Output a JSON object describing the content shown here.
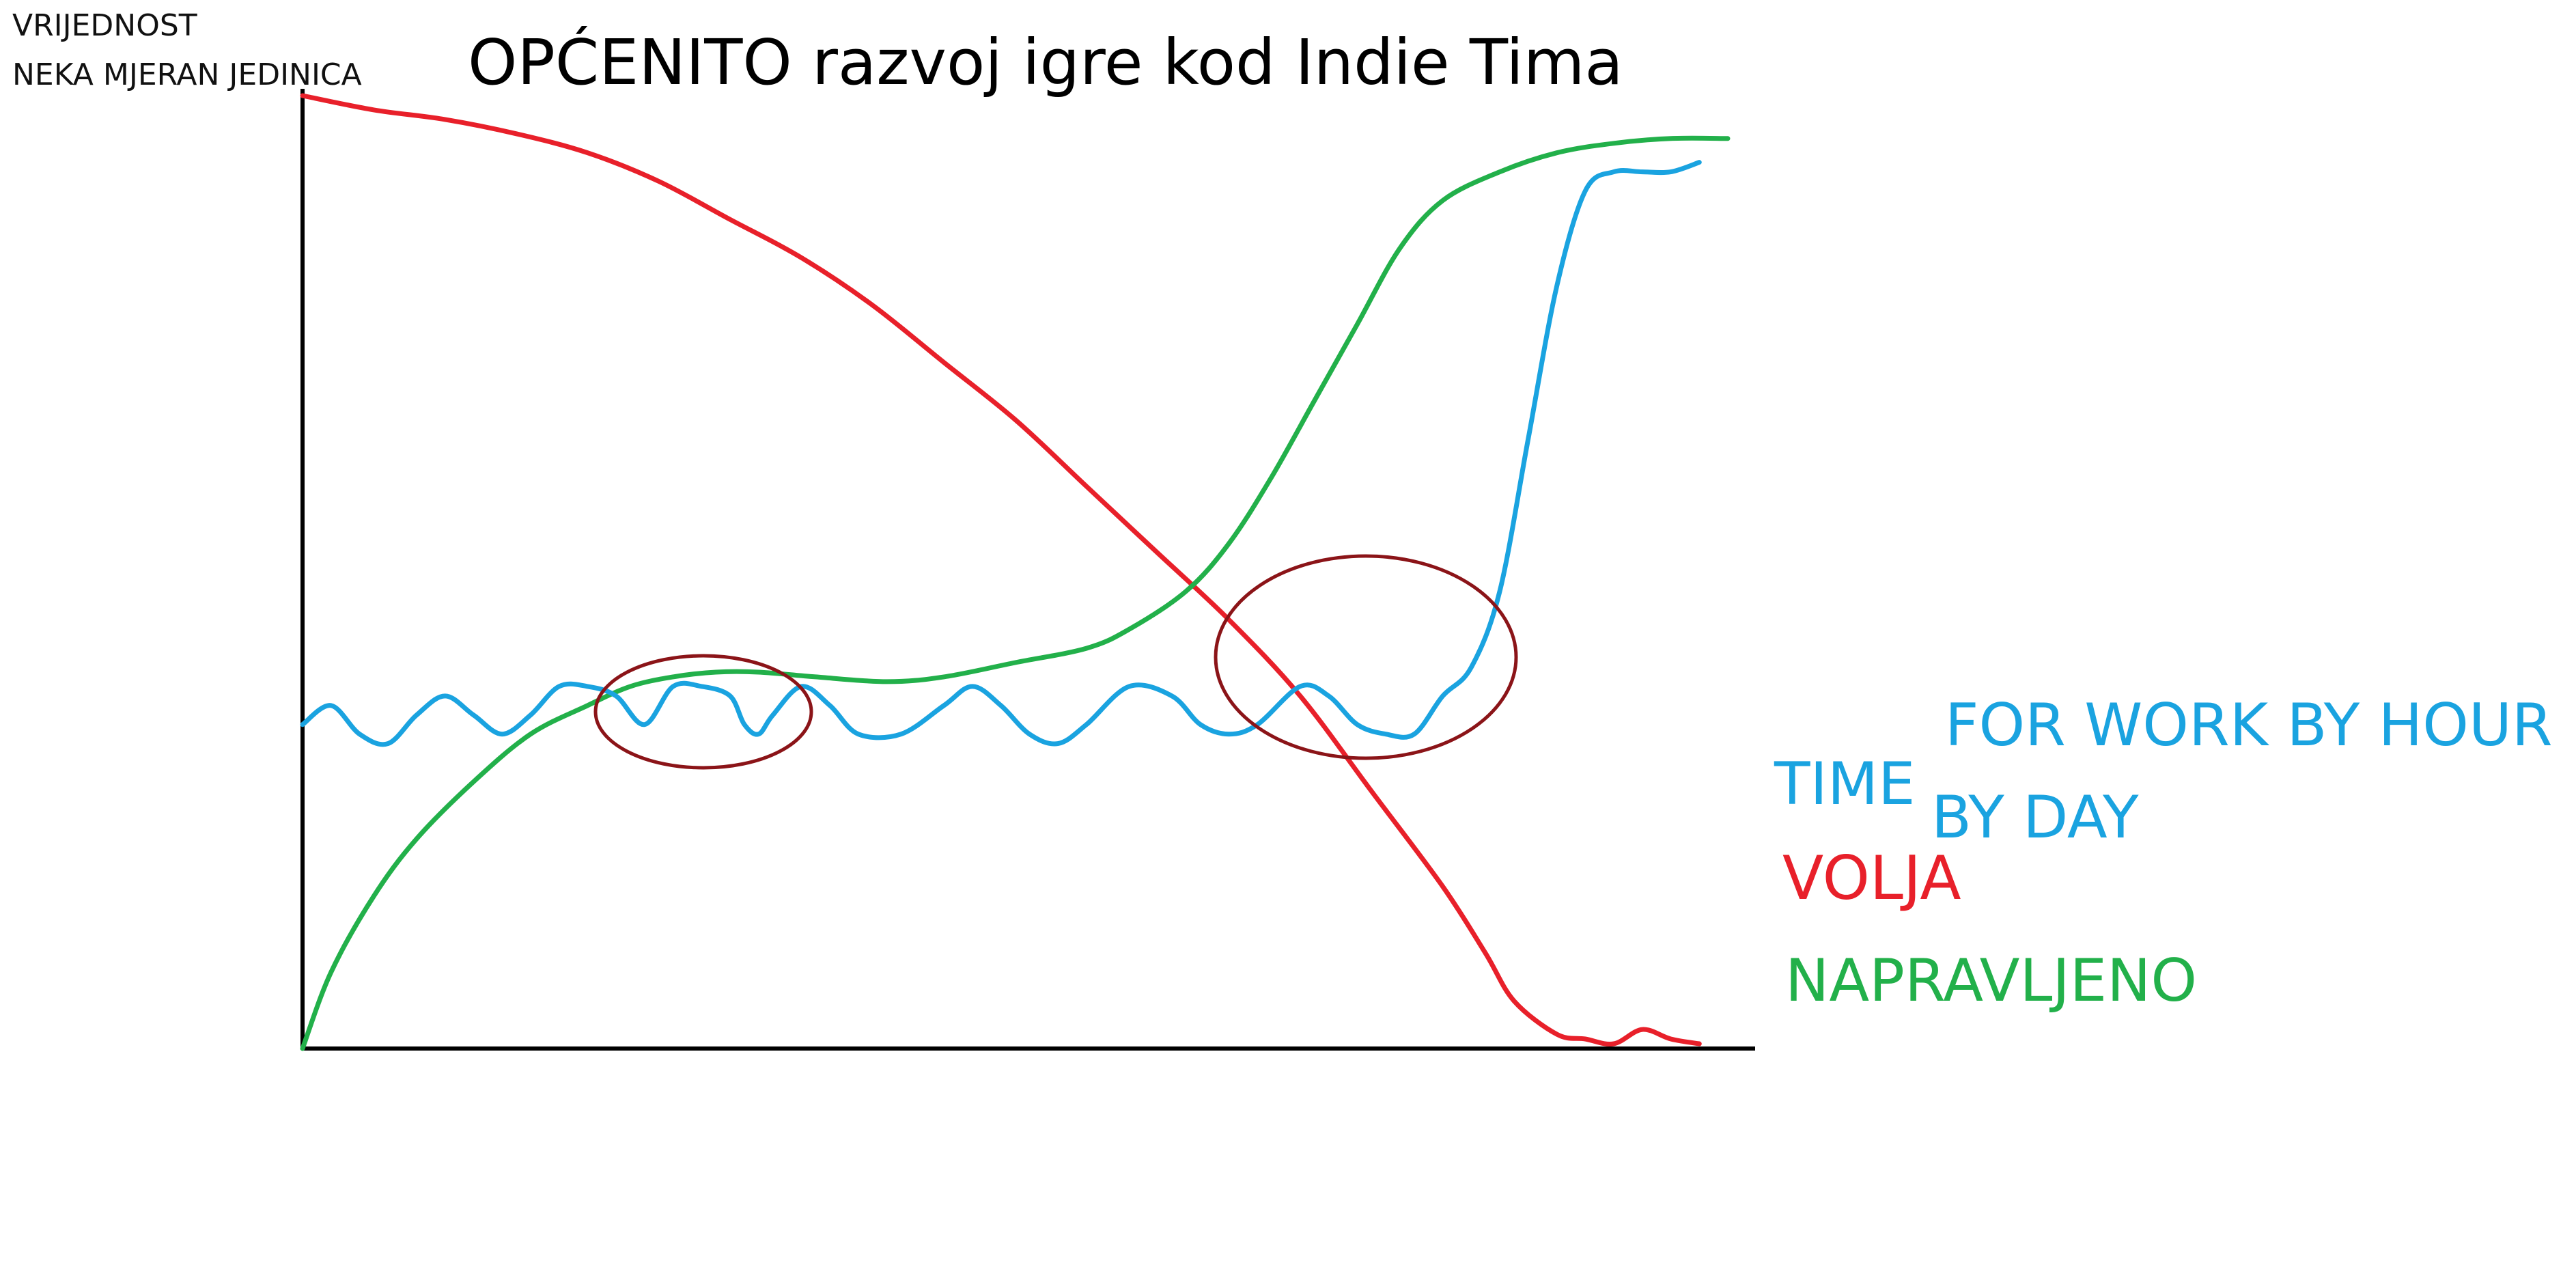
{
  "chart_data": {
    "type": "line",
    "title": "OPĆENITO razvoj igre kod Indie Tima",
    "ylabel_lines": [
      "VRIJEDNOST",
      "NEKA MJERAN JEDINICA"
    ],
    "xlabel": "",
    "xlim": [
      0,
      100
    ],
    "ylim": [
      0,
      100
    ],
    "grid": false,
    "legend_position": "right",
    "series": [
      {
        "name": "VOLJA",
        "color": "#e8202a",
        "points": [
          [
            0,
            100
          ],
          [
            5,
            98.5
          ],
          [
            10,
            97.5
          ],
          [
            15,
            96
          ],
          [
            20,
            94
          ],
          [
            25,
            91
          ],
          [
            30,
            87
          ],
          [
            35,
            83
          ],
          [
            40,
            78
          ],
          [
            45,
            72
          ],
          [
            50,
            66
          ],
          [
            55,
            59
          ],
          [
            60,
            52
          ],
          [
            65,
            45
          ],
          [
            70,
            37
          ],
          [
            75,
            27
          ],
          [
            80,
            17
          ],
          [
            83,
            10
          ],
          [
            85,
            5
          ],
          [
            88,
            1.5
          ],
          [
            90,
            1
          ],
          [
            92,
            0.5
          ],
          [
            94,
            2
          ],
          [
            96,
            1
          ],
          [
            98,
            0.5
          ]
        ]
      },
      {
        "name": "NAPRAVLJENO",
        "color": "#22b04a",
        "points": [
          [
            0,
            0
          ],
          [
            2,
            8
          ],
          [
            5,
            16
          ],
          [
            8,
            22
          ],
          [
            12,
            28
          ],
          [
            16,
            33
          ],
          [
            20,
            36
          ],
          [
            23,
            38
          ],
          [
            26,
            39
          ],
          [
            29,
            39.5
          ],
          [
            32,
            39.5
          ],
          [
            36,
            39
          ],
          [
            41,
            38.5
          ],
          [
            45,
            39
          ],
          [
            50,
            40.5
          ],
          [
            55,
            42
          ],
          [
            58,
            44
          ],
          [
            62,
            48
          ],
          [
            65,
            53
          ],
          [
            68,
            60
          ],
          [
            71,
            68
          ],
          [
            74,
            76
          ],
          [
            77,
            84
          ],
          [
            80,
            89
          ],
          [
            84,
            92
          ],
          [
            88,
            94
          ],
          [
            92,
            95
          ],
          [
            96,
            95.5
          ],
          [
            100,
            95.5
          ]
        ]
      },
      {
        "name": "TIME FOR WORK BY HOUR BY DAY",
        "color": "#1aa3e0",
        "points": [
          [
            0,
            34
          ],
          [
            2,
            36
          ],
          [
            4,
            33
          ],
          [
            6,
            32
          ],
          [
            8,
            35
          ],
          [
            10,
            37
          ],
          [
            12,
            35
          ],
          [
            14,
            33
          ],
          [
            16,
            35
          ],
          [
            18,
            38
          ],
          [
            20,
            38
          ],
          [
            22,
            37
          ],
          [
            24,
            34
          ],
          [
            26,
            38
          ],
          [
            28,
            38
          ],
          [
            30,
            37
          ],
          [
            31,
            34
          ],
          [
            32,
            33
          ],
          [
            33,
            35
          ],
          [
            35,
            38
          ],
          [
            37,
            36
          ],
          [
            39,
            33
          ],
          [
            42,
            33
          ],
          [
            45,
            36
          ],
          [
            47,
            38
          ],
          [
            49,
            36
          ],
          [
            51,
            33
          ],
          [
            53,
            32
          ],
          [
            55,
            34
          ],
          [
            58,
            38
          ],
          [
            61,
            37
          ],
          [
            63,
            34
          ],
          [
            65,
            33
          ],
          [
            67,
            34
          ],
          [
            70,
            38
          ],
          [
            72,
            37
          ],
          [
            74,
            34
          ],
          [
            76,
            33
          ],
          [
            78,
            33
          ],
          [
            80,
            37
          ],
          [
            82,
            40
          ],
          [
            84,
            48
          ],
          [
            86,
            64
          ],
          [
            88,
            80
          ],
          [
            90,
            90
          ],
          [
            92,
            92
          ],
          [
            94,
            92
          ],
          [
            96,
            92
          ],
          [
            98,
            93
          ]
        ]
      }
    ],
    "annotations": [
      {
        "type": "ellipse",
        "note": "highlight",
        "color": "#8b1418"
      },
      {
        "type": "ellipse",
        "note": "highlight",
        "color": "#8b1418"
      }
    ],
    "legend_items": [
      {
        "text": "TIME",
        "color": "#1aa3e0"
      },
      {
        "text": "FOR WORK BY HOUR",
        "color": "#1aa3e0"
      },
      {
        "text": "BY DAY",
        "color": "#1aa3e0"
      },
      {
        "text": "VOLJA",
        "color": "#e8202a"
      },
      {
        "text": "NAPRAVLJENO",
        "color": "#22b04a"
      }
    ],
    "colors": {
      "axis": "#000000",
      "ellipse": "#8b1418"
    }
  }
}
